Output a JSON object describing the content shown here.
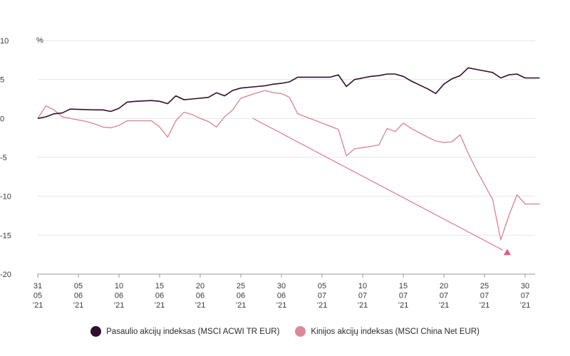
{
  "chart_data": {
    "type": "line",
    "unit_label": "%",
    "ylim": [
      -20,
      10
    ],
    "yticks": [
      10,
      5,
      0,
      -5,
      -10,
      -15,
      -20
    ],
    "grid": true,
    "x_ticks": [
      {
        "d": 0,
        "lines": [
          "31",
          "05",
          "’21"
        ]
      },
      {
        "d": 5,
        "lines": [
          "05",
          "06",
          "’21"
        ]
      },
      {
        "d": 10,
        "lines": [
          "10",
          "06",
          "’21"
        ]
      },
      {
        "d": 15,
        "lines": [
          "15",
          "06",
          "’21"
        ]
      },
      {
        "d": 20,
        "lines": [
          "20",
          "06",
          "’21"
        ]
      },
      {
        "d": 25,
        "lines": [
          "25",
          "06",
          "’21"
        ]
      },
      {
        "d": 30,
        "lines": [
          "30",
          "06",
          "’21"
        ]
      },
      {
        "d": 35,
        "lines": [
          "05",
          "07",
          "’21"
        ]
      },
      {
        "d": 40,
        "lines": [
          "10",
          "07",
          "’21"
        ]
      },
      {
        "d": 45,
        "lines": [
          "15",
          "07",
          "’21"
        ]
      },
      {
        "d": 50,
        "lines": [
          "20",
          "07",
          "’21"
        ]
      },
      {
        "d": 55,
        "lines": [
          "25",
          "07",
          "’21"
        ]
      },
      {
        "d": 60,
        "lines": [
          "30",
          "07",
          "’21"
        ]
      }
    ],
    "xlim": [
      0,
      61.8
    ],
    "series": [
      {
        "name": "Pasaulio akcijų indeksas (MSCI ACWI TR EUR)",
        "color": "#2e0f2c",
        "points": [
          [
            0,
            0
          ],
          [
            1,
            0.2
          ],
          [
            2,
            0.6
          ],
          [
            3,
            0.7
          ],
          [
            4,
            1.2
          ],
          [
            7,
            1.1
          ],
          [
            8,
            1.1
          ],
          [
            9,
            0.9
          ],
          [
            10,
            1.3
          ],
          [
            11,
            2.1
          ],
          [
            12,
            2.2
          ],
          [
            14,
            2.3
          ],
          [
            15,
            2.2
          ],
          [
            16,
            1.9
          ],
          [
            17,
            2.9
          ],
          [
            18,
            2.4
          ],
          [
            19,
            2.5
          ],
          [
            21,
            2.7
          ],
          [
            22,
            3.3
          ],
          [
            23,
            2.9
          ],
          [
            24,
            3.6
          ],
          [
            25,
            3.9
          ],
          [
            27,
            4.1
          ],
          [
            28,
            4.2
          ],
          [
            29,
            4.4
          ],
          [
            30,
            4.5
          ],
          [
            31,
            4.7
          ],
          [
            32,
            5.3
          ],
          [
            34,
            5.3
          ],
          [
            35,
            5.3
          ],
          [
            36,
            5.3
          ],
          [
            37,
            5.6
          ],
          [
            38,
            4.1
          ],
          [
            39,
            5.0
          ],
          [
            40,
            5.2
          ],
          [
            41,
            5.4
          ],
          [
            42,
            5.5
          ],
          [
            43,
            5.7
          ],
          [
            44,
            5.7
          ],
          [
            45,
            5.4
          ],
          [
            46,
            4.8
          ],
          [
            47,
            4.3
          ],
          [
            48,
            3.8
          ],
          [
            49,
            3.2
          ],
          [
            50,
            4.4
          ],
          [
            51,
            5.1
          ],
          [
            52,
            5.5
          ],
          [
            53,
            6.5
          ],
          [
            54,
            6.3
          ],
          [
            55,
            6.1
          ],
          [
            56,
            5.9
          ],
          [
            57,
            5.2
          ],
          [
            58,
            5.6
          ],
          [
            59,
            5.7
          ],
          [
            60,
            5.2
          ],
          [
            61.8,
            5.2
          ]
        ]
      },
      {
        "name": "Kinijos akcijų indeksas (MSCI China Net EUR)",
        "color": "#d98a98",
        "points": [
          [
            0,
            0
          ],
          [
            1,
            1.6
          ],
          [
            2,
            1.1
          ],
          [
            3,
            0.2
          ],
          [
            4,
            0.0
          ],
          [
            6,
            -0.4
          ],
          [
            7,
            -0.7
          ],
          [
            8,
            -1.1
          ],
          [
            9,
            -1.2
          ],
          [
            10,
            -0.9
          ],
          [
            11,
            -0.3
          ],
          [
            14,
            -0.3
          ],
          [
            15,
            -1.1
          ],
          [
            16,
            -2.4
          ],
          [
            17,
            -0.3
          ],
          [
            18,
            0.8
          ],
          [
            19,
            0.5
          ],
          [
            20,
            0.0
          ],
          [
            21,
            -0.4
          ],
          [
            22,
            -1.1
          ],
          [
            23,
            0.2
          ],
          [
            24,
            1.1
          ],
          [
            25,
            2.6
          ],
          [
            27,
            3.3
          ],
          [
            28,
            3.6
          ],
          [
            29,
            3.3
          ],
          [
            30,
            3.2
          ],
          [
            31,
            2.7
          ],
          [
            32,
            0.6
          ],
          [
            34,
            -0.2
          ],
          [
            36,
            -1.0
          ],
          [
            37,
            -1.4
          ],
          [
            38,
            -4.8
          ],
          [
            39,
            -3.9
          ],
          [
            41,
            -3.6
          ],
          [
            42,
            -3.4
          ],
          [
            43,
            -1.3
          ],
          [
            44,
            -1.7
          ],
          [
            45,
            -0.6
          ],
          [
            46,
            -1.3
          ],
          [
            48,
            -2.4
          ],
          [
            49,
            -2.9
          ],
          [
            50,
            -3.1
          ],
          [
            51,
            -3.0
          ],
          [
            52,
            -2.1
          ],
          [
            53,
            -4.5
          ],
          [
            54,
            -6.6
          ],
          [
            55,
            -8.5
          ],
          [
            56,
            -10.4
          ],
          [
            57,
            -15.6
          ],
          [
            58,
            -12.5
          ],
          [
            59,
            -9.8
          ],
          [
            60,
            -11.0
          ],
          [
            61.8,
            -11.0
          ]
        ]
      }
    ],
    "annotation": {
      "type": "arrow",
      "color": "#e05a8a",
      "from": [
        26.5,
        0
      ],
      "to": [
        57.8,
        -17.2
      ]
    }
  }
}
